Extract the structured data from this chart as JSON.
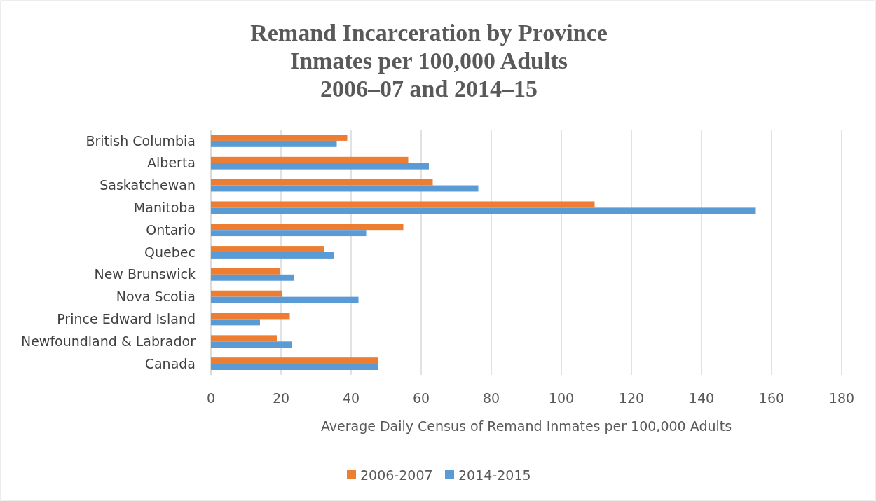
{
  "chart_data": {
    "type": "bar",
    "orientation": "horizontal",
    "title": "Remand Incarceration by Province\nInmates per 100,000 Adults\n2006–07 and 2014–15",
    "xlabel": "Average Daily Census of Remand Inmates per 100,000 Adults",
    "categories": [
      "British Columbia",
      "Alberta",
      "Saskatchewan",
      "Manitoba",
      "Ontario",
      "Quebec",
      "New Brunswick",
      "Nova Scotia",
      "Prince Edward Island",
      "Newfoundland & Labrador",
      "Canada"
    ],
    "series": [
      {
        "name": "2006-2007",
        "color": "#ed7d31",
        "values": [
          38.9,
          56.3,
          63.3,
          109.5,
          54.9,
          32.4,
          19.8,
          20.3,
          22.5,
          18.8,
          47.7
        ]
      },
      {
        "name": "2014-2015",
        "color": "#5b9bd5",
        "values": [
          35.9,
          62.2,
          76.3,
          155.5,
          44.3,
          35.2,
          23.7,
          42.1,
          14.0,
          23.1,
          47.8
        ]
      }
    ],
    "xlim": [
      0,
      180
    ],
    "xticks": [
      0,
      20,
      40,
      60,
      80,
      100,
      120,
      140,
      160,
      180
    ],
    "grid": "x",
    "legend": "bottom"
  }
}
